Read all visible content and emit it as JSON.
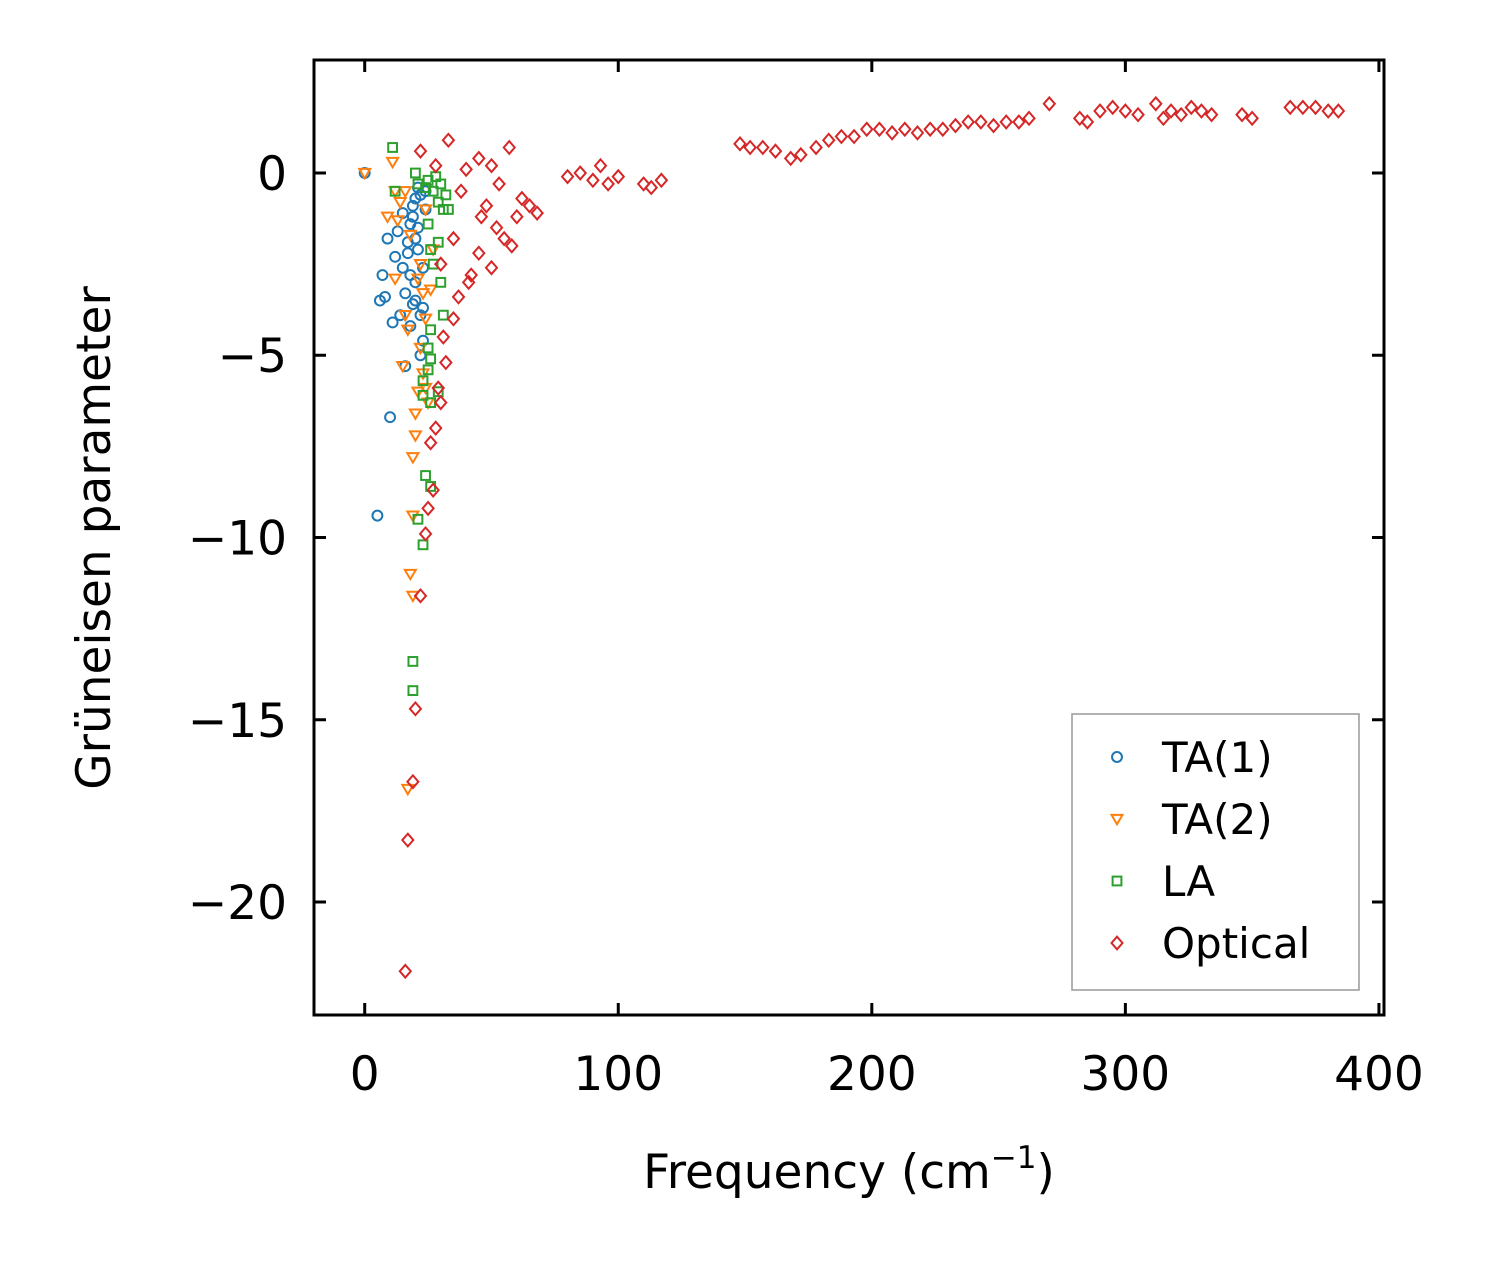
{
  "chart_data": {
    "type": "scatter",
    "title": "",
    "xlabel": "Frequency (cm",
    "xlabel_sup": "−1",
    "xlabel_tail": ")",
    "ylabel": "Grüneisen parameter",
    "xlim": [
      -20,
      402
    ],
    "ylim": [
      -23.1,
      3.1
    ],
    "xticks": [
      0,
      100,
      200,
      300,
      400
    ],
    "yticks": [
      0,
      -5,
      -10,
      -15,
      -20
    ],
    "xtick_labels": [
      "0",
      "100",
      "200",
      "300",
      "400"
    ],
    "ytick_labels": [
      "0",
      "−5",
      "−10",
      "−15",
      "−20"
    ],
    "grid": false,
    "legend_position": "bottom-right",
    "series": [
      {
        "name": "TA(1)",
        "marker": "circle",
        "color": "#1f77b4",
        "points": [
          [
            0,
            0
          ],
          [
            5,
            -9.4
          ],
          [
            10,
            -6.7
          ],
          [
            16,
            -5.3
          ],
          [
            6,
            -3.5
          ],
          [
            8,
            -3.4
          ],
          [
            7,
            -2.8
          ],
          [
            9,
            -1.8
          ],
          [
            11,
            -4.1
          ],
          [
            12,
            -2.3
          ],
          [
            13,
            -1.6
          ],
          [
            14,
            -3.9
          ],
          [
            15,
            -2.6
          ],
          [
            16,
            -3.3
          ],
          [
            17,
            -1.9
          ],
          [
            18,
            -2.8
          ],
          [
            18,
            -4.2
          ],
          [
            19,
            -1.2
          ],
          [
            20,
            -0.7
          ],
          [
            20,
            -3.5
          ],
          [
            21,
            -2.1
          ],
          [
            22,
            -5.0
          ],
          [
            22,
            -0.6
          ],
          [
            23,
            -3.7
          ],
          [
            23,
            -4.6
          ],
          [
            24,
            -1.0
          ],
          [
            19,
            -0.9
          ],
          [
            21,
            -1.5
          ],
          [
            17,
            -2.2
          ],
          [
            20,
            -3.0
          ],
          [
            22,
            -3.9
          ],
          [
            24,
            -0.5
          ],
          [
            18,
            -1.4
          ],
          [
            23,
            -2.6
          ],
          [
            21,
            -0.4
          ],
          [
            19,
            -3.6
          ],
          [
            15,
            -1.1
          ],
          [
            20,
            -1.8
          ]
        ]
      },
      {
        "name": "TA(2)",
        "marker": "triangle-down",
        "color": "#ff7f0e",
        "points": [
          [
            0,
            0
          ],
          [
            11,
            0.3
          ],
          [
            12,
            -0.5
          ],
          [
            9,
            -1.2
          ],
          [
            13,
            -1.3
          ],
          [
            12,
            -2.9
          ],
          [
            16,
            -3.9
          ],
          [
            17,
            -4.3
          ],
          [
            15,
            -5.3
          ],
          [
            20,
            -6.6
          ],
          [
            20,
            -7.2
          ],
          [
            19,
            -7.8
          ],
          [
            19,
            -9.4
          ],
          [
            18,
            -11.0
          ],
          [
            19,
            -11.6
          ],
          [
            17,
            -16.9
          ],
          [
            14,
            -0.8
          ],
          [
            16,
            -0.5
          ],
          [
            18,
            -1.7
          ],
          [
            22,
            -2.5
          ],
          [
            21,
            -2.9
          ],
          [
            23,
            -3.3
          ],
          [
            24,
            -4.0
          ],
          [
            22,
            -4.8
          ],
          [
            23,
            -5.5
          ],
          [
            24,
            -5.9
          ],
          [
            21,
            -6.0
          ],
          [
            25,
            -6.3
          ],
          [
            26,
            -3.2
          ],
          [
            27,
            -2.1
          ],
          [
            24,
            -1.0
          ]
        ]
      },
      {
        "name": "LA",
        "marker": "square",
        "color": "#2ca02c",
        "points": [
          [
            11,
            0.7
          ],
          [
            12,
            -0.5
          ],
          [
            20,
            0.0
          ],
          [
            21,
            -0.3
          ],
          [
            24,
            -0.4
          ],
          [
            25,
            -0.2
          ],
          [
            27,
            -0.5
          ],
          [
            29,
            -0.8
          ],
          [
            30,
            -0.3
          ],
          [
            31,
            -1.0
          ],
          [
            29,
            -1.9
          ],
          [
            33,
            -1.0
          ],
          [
            26,
            -2.1
          ],
          [
            27,
            -2.5
          ],
          [
            30,
            -3.0
          ],
          [
            31,
            -3.9
          ],
          [
            26,
            -4.3
          ],
          [
            25,
            -4.8
          ],
          [
            26,
            -5.1
          ],
          [
            25,
            -5.4
          ],
          [
            23,
            -5.7
          ],
          [
            29,
            -6.0
          ],
          [
            26,
            -6.3
          ],
          [
            23,
            -6.1
          ],
          [
            24,
            -8.3
          ],
          [
            26,
            -8.6
          ],
          [
            21,
            -9.5
          ],
          [
            23,
            -10.2
          ],
          [
            19,
            -13.4
          ],
          [
            19,
            -14.2
          ],
          [
            28,
            -0.1
          ],
          [
            32,
            -0.6
          ],
          [
            25,
            -1.4
          ]
        ]
      },
      {
        "name": "Optical",
        "marker": "diamond",
        "color": "#d62728",
        "points": [
          [
            16,
            -21.9
          ],
          [
            17,
            -18.3
          ],
          [
            19,
            -16.7
          ],
          [
            20,
            -14.7
          ],
          [
            22,
            -11.6
          ],
          [
            25,
            -9.2
          ],
          [
            27,
            -8.7
          ],
          [
            24,
            -9.9
          ],
          [
            26,
            -7.4
          ],
          [
            28,
            -7.0
          ],
          [
            30,
            -6.3
          ],
          [
            29,
            -5.9
          ],
          [
            32,
            -5.2
          ],
          [
            31,
            -4.5
          ],
          [
            35,
            -4.0
          ],
          [
            37,
            -3.4
          ],
          [
            42,
            -2.8
          ],
          [
            45,
            -2.2
          ],
          [
            50,
            -2.6
          ],
          [
            55,
            -1.8
          ],
          [
            60,
            -1.2
          ],
          [
            65,
            -0.9
          ],
          [
            68,
            -1.1
          ],
          [
            33,
            0.9
          ],
          [
            40,
            0.1
          ],
          [
            45,
            0.4
          ],
          [
            50,
            0.2
          ],
          [
            57,
            0.7
          ],
          [
            22,
            0.6
          ],
          [
            28,
            0.2
          ],
          [
            38,
            -0.5
          ],
          [
            48,
            -0.9
          ],
          [
            52,
            -1.5
          ],
          [
            58,
            -2.0
          ],
          [
            62,
            -0.7
          ],
          [
            35,
            -1.8
          ],
          [
            41,
            -3.0
          ],
          [
            46,
            -1.2
          ],
          [
            53,
            -0.3
          ],
          [
            30,
            -2.5
          ],
          [
            80,
            -0.1
          ],
          [
            85,
            0.0
          ],
          [
            90,
            -0.2
          ],
          [
            93,
            0.2
          ],
          [
            96,
            -0.3
          ],
          [
            100,
            -0.1
          ],
          [
            110,
            -0.3
          ],
          [
            113,
            -0.4
          ],
          [
            117,
            -0.2
          ],
          [
            148,
            0.8
          ],
          [
            152,
            0.7
          ],
          [
            157,
            0.7
          ],
          [
            162,
            0.6
          ],
          [
            168,
            0.4
          ],
          [
            172,
            0.5
          ],
          [
            178,
            0.7
          ],
          [
            183,
            0.9
          ],
          [
            188,
            1.0
          ],
          [
            193,
            1.0
          ],
          [
            198,
            1.2
          ],
          [
            203,
            1.2
          ],
          [
            208,
            1.1
          ],
          [
            213,
            1.2
          ],
          [
            218,
            1.1
          ],
          [
            223,
            1.2
          ],
          [
            228,
            1.2
          ],
          [
            233,
            1.3
          ],
          [
            238,
            1.4
          ],
          [
            243,
            1.4
          ],
          [
            248,
            1.3
          ],
          [
            253,
            1.4
          ],
          [
            258,
            1.4
          ],
          [
            262,
            1.5
          ],
          [
            270,
            1.9
          ],
          [
            282,
            1.5
          ],
          [
            285,
            1.4
          ],
          [
            290,
            1.7
          ],
          [
            295,
            1.8
          ],
          [
            300,
            1.7
          ],
          [
            305,
            1.6
          ],
          [
            312,
            1.9
          ],
          [
            315,
            1.5
          ],
          [
            318,
            1.7
          ],
          [
            322,
            1.6
          ],
          [
            326,
            1.8
          ],
          [
            330,
            1.7
          ],
          [
            334,
            1.6
          ],
          [
            346,
            1.6
          ],
          [
            350,
            1.5
          ],
          [
            365,
            1.8
          ],
          [
            370,
            1.8
          ],
          [
            375,
            1.8
          ],
          [
            380,
            1.7
          ],
          [
            384,
            1.7
          ]
        ]
      }
    ]
  }
}
